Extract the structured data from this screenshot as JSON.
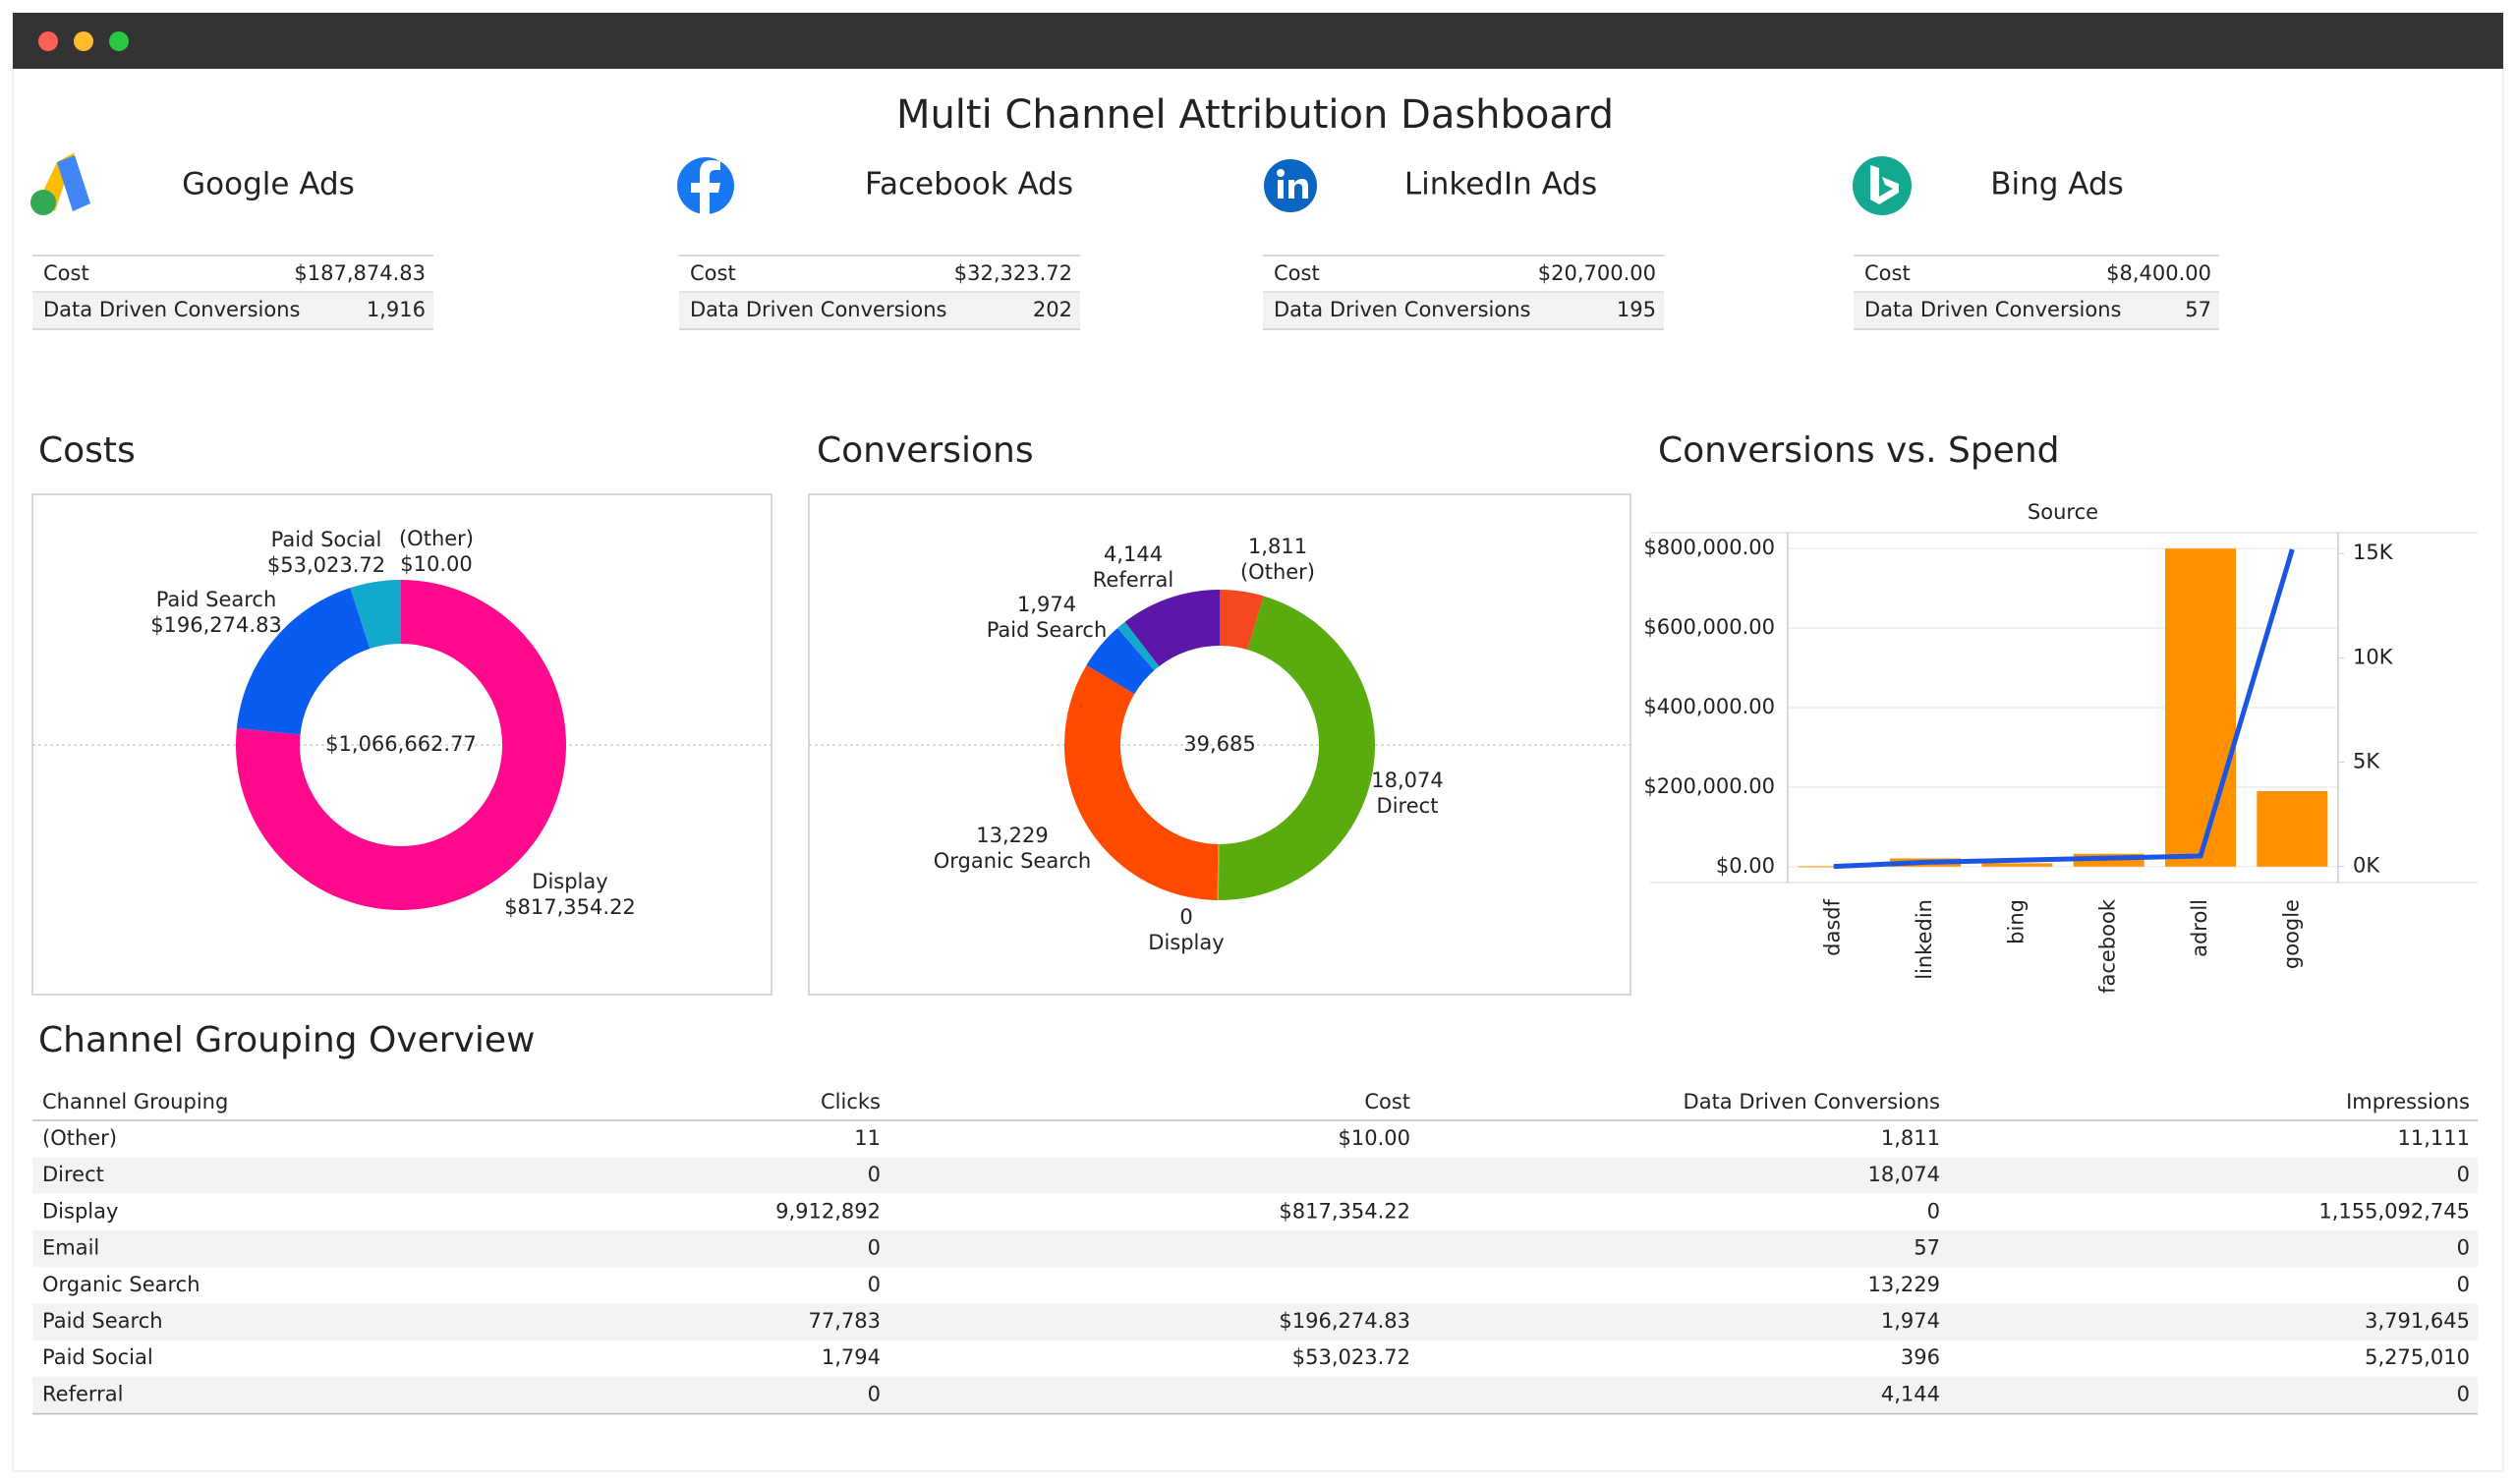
{
  "header": {
    "title": "Multi Channel Attribution Dashboard"
  },
  "kpis": [
    {
      "name": "Google Ads",
      "rows": [
        {
          "label": "Cost",
          "value": "$187,874.83"
        },
        {
          "label": "Data Driven Conversions",
          "value": "1,916"
        }
      ]
    },
    {
      "name": "Facebook Ads",
      "rows": [
        {
          "label": "Cost",
          "value": "$32,323.72"
        },
        {
          "label": "Data Driven Conversions",
          "value": "202"
        }
      ]
    },
    {
      "name": "LinkedIn Ads",
      "rows": [
        {
          "label": "Cost",
          "value": "$20,700.00"
        },
        {
          "label": "Data Driven Conversions",
          "value": "195"
        }
      ]
    },
    {
      "name": "Bing Ads",
      "rows": [
        {
          "label": "Cost",
          "value": "$8,400.00"
        },
        {
          "label": "Data Driven Conversions",
          "value": "57"
        }
      ]
    }
  ],
  "chart_data": [
    {
      "type": "pie",
      "donut": true,
      "title": "Costs",
      "center_label": "$1,066,662.77",
      "categories": [
        "Display",
        "Paid Search",
        "Paid Social",
        "(Other)"
      ],
      "values": [
        817354.22,
        196274.83,
        53023.72,
        10.0
      ],
      "value_labels": [
        "$817,354.22",
        "$196,274.83",
        "$53,023.72",
        "$10.00"
      ],
      "colors": [
        "#ff0a8c",
        "#0a5cf0",
        "#12a9cc",
        "#ff4d0a"
      ]
    },
    {
      "type": "pie",
      "donut": true,
      "title": "Conversions",
      "center_label": "39,685",
      "categories": [
        "(Other)",
        "Direct",
        "Display",
        null,
        "Organic Search",
        "Paid Search",
        null,
        "Referral"
      ],
      "values": [
        1811,
        18074,
        0,
        57,
        13229,
        1974,
        396,
        4144
      ],
      "value_labels": [
        "1,811",
        "18,074",
        "0",
        null,
        "13,229",
        "1,974",
        null,
        "4,144"
      ],
      "colors": [
        "#f5481f",
        "#5aab0e",
        "#ff0a8c",
        "#e8a900",
        "#ff4a00",
        "#0a5cf0",
        "#12a9cc",
        "#5c17a8"
      ]
    },
    {
      "type": "combo",
      "title": "Conversions vs. Spend",
      "subtitle": "Source",
      "categories": [
        "dasdf",
        "linkedin",
        "bing",
        "facebook",
        "adroll",
        "google"
      ],
      "series": [
        {
          "type": "bar",
          "color": "#ff9100",
          "values": [
            1000,
            20700,
            8400,
            32323.72,
            800000,
            190000
          ]
        },
        {
          "type": "line",
          "axis": "y2",
          "color": "#1a55e3",
          "values": [
            0,
            200,
            300,
            400,
            500,
            15200
          ]
        }
      ],
      "ylim": [
        -40000,
        840000
      ],
      "yticks": [
        {
          "value": 0,
          "label": "$0.00"
        },
        {
          "value": 200000,
          "label": "$200,000.00"
        },
        {
          "value": 400000,
          "label": "$400,000.00"
        },
        {
          "value": 600000,
          "label": "$600,000.00"
        },
        {
          "value": 800000,
          "label": "$800,000.00"
        }
      ],
      "y2lim": [
        -770,
        16000
      ],
      "y2ticks": [
        {
          "value": 0,
          "label": "0K"
        },
        {
          "value": 5000,
          "label": "5K"
        },
        {
          "value": 10000,
          "label": "10K"
        },
        {
          "value": 15000,
          "label": "15K"
        }
      ],
      "grid": true
    }
  ],
  "table": {
    "title": "Channel Grouping Overview",
    "columns": [
      "Channel Grouping",
      "Clicks",
      "Cost",
      "Data Driven Conversions",
      "Impressions"
    ],
    "rows": [
      [
        "(Other)",
        "11",
        "$10.00",
        "1,811",
        "11,111"
      ],
      [
        "Direct",
        "0",
        null,
        "18,074",
        "0"
      ],
      [
        "Display",
        "9,912,892",
        "$817,354.22",
        "0",
        "1,155,092,745"
      ],
      [
        "Email",
        "0",
        null,
        "57",
        "0"
      ],
      [
        "Organic Search",
        "0",
        null,
        "13,229",
        "0"
      ],
      [
        "Paid Search",
        "77,783",
        "$196,274.83",
        "1,974",
        "3,791,645"
      ],
      [
        "Paid Social",
        "1,794",
        "$53,023.72",
        "396",
        "5,275,010"
      ],
      [
        "Referral",
        "0",
        null,
        "4,144",
        "0"
      ]
    ]
  }
}
